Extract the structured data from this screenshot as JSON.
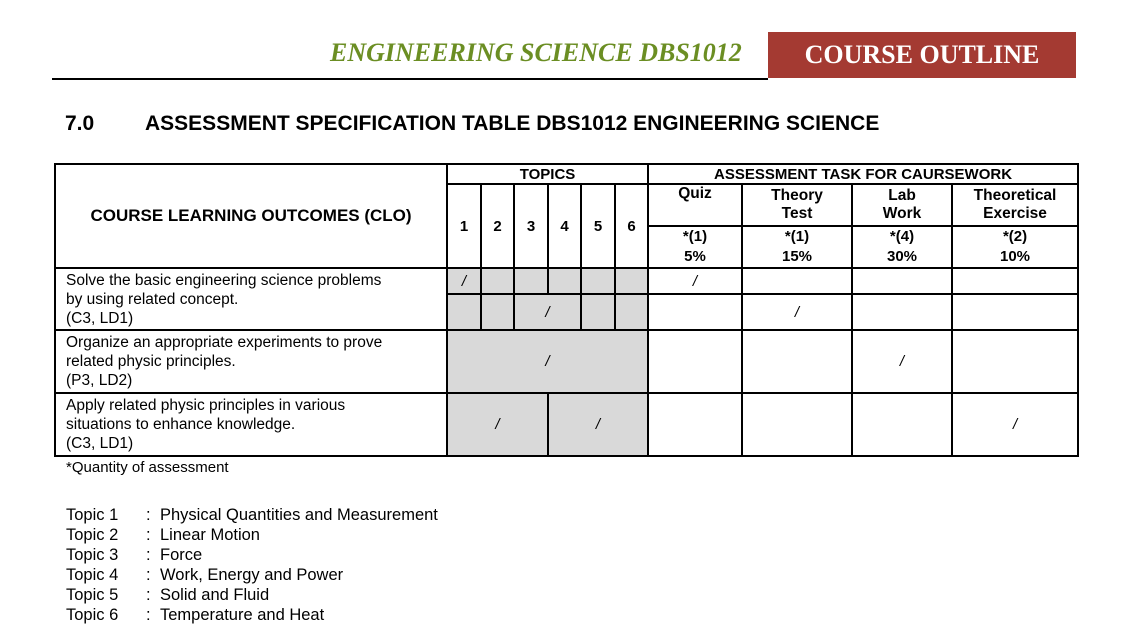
{
  "header": {
    "title": "ENGINEERING SCIENCE DBS1012",
    "badge": "COURSE OUTLINE"
  },
  "section": {
    "number": "7.0",
    "title": "ASSESSMENT SPECIFICATION TABLE DBS1012 ENGINEERING SCIENCE"
  },
  "table": {
    "clo_header": "COURSE LEARNING OUTCOMES (CLO)",
    "topics_header": "TOPICS",
    "topic_numbers": [
      "1",
      "2",
      "3",
      "4",
      "5",
      "6"
    ],
    "tasks_header": "ASSESSMENT TASK FOR CAURSEWORK",
    "tasks": [
      {
        "label_line1": "Quiz",
        "label_line2": "",
        "qty": "*(1)",
        "weight": "5%"
      },
      {
        "label_line1": "Theory",
        "label_line2": "Test",
        "qty": "*(1)",
        "weight": "15%"
      },
      {
        "label_line1": "Lab",
        "label_line2": "Work",
        "qty": "*(4)",
        "weight": "30%"
      },
      {
        "label_line1": "Theoretical",
        "label_line2": "Exercise",
        "qty": "*(2)",
        "weight": "10%"
      }
    ],
    "mark": "/",
    "clos": [
      {
        "line1": "Solve the basic engineering science problems",
        "line2": "by using related concept.",
        "line3": "(C3, LD1)"
      },
      {
        "line1": "Organize an appropriate experiments to prove",
        "line2": "related physic principles.",
        "line3": "(P3, LD2)"
      },
      {
        "line1": "Apply related physic principles in various",
        "line2": "situations to enhance knowledge.",
        "line3": "(C3, LD1)"
      }
    ]
  },
  "note": "*Quantity of assessment",
  "topic_list": [
    {
      "label": "Topic 1",
      "name": "Physical Quantities and Measurement"
    },
    {
      "label": "Topic 2",
      "name": "Linear Motion"
    },
    {
      "label": "Topic 3",
      "name": "Force"
    },
    {
      "label": "Topic 4",
      "name": "Work, Energy and Power"
    },
    {
      "label": "Topic 5",
      "name": "Solid and Fluid"
    },
    {
      "label": "Topic 6",
      "name": "Temperature and Heat"
    }
  ],
  "topic_separator": ":"
}
